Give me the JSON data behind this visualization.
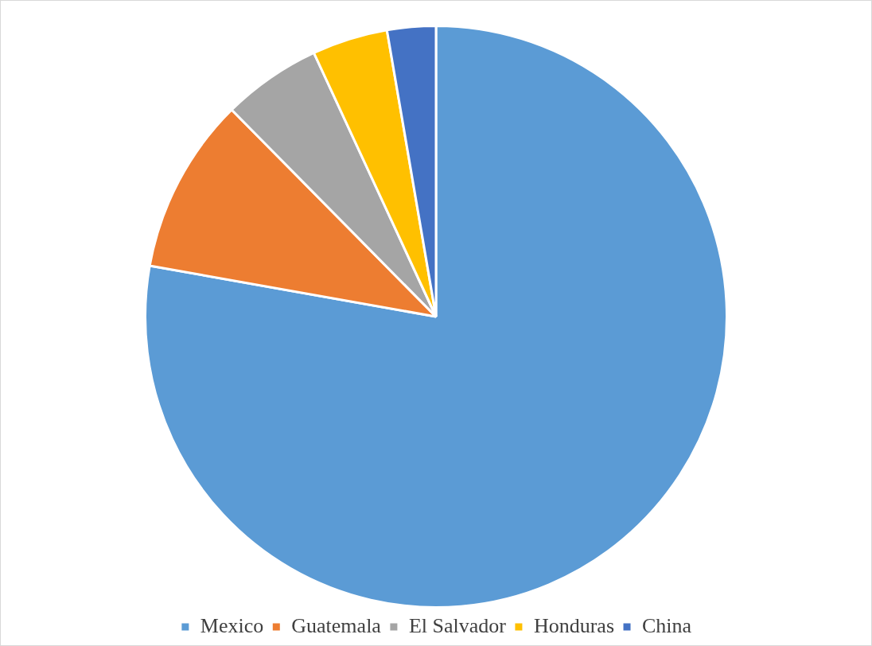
{
  "chart_data": {
    "type": "pie",
    "categories": [
      "Mexico",
      "Guatemala",
      "El Salvador",
      "Honduras",
      "China"
    ],
    "values": [
      77.8,
      9.8,
      5.5,
      4.2,
      2.7
    ],
    "colors": [
      "#5b9bd5",
      "#ed7d31",
      "#a5a5a5",
      "#ffc000",
      "#4472c4"
    ],
    "legend": "bottom"
  }
}
